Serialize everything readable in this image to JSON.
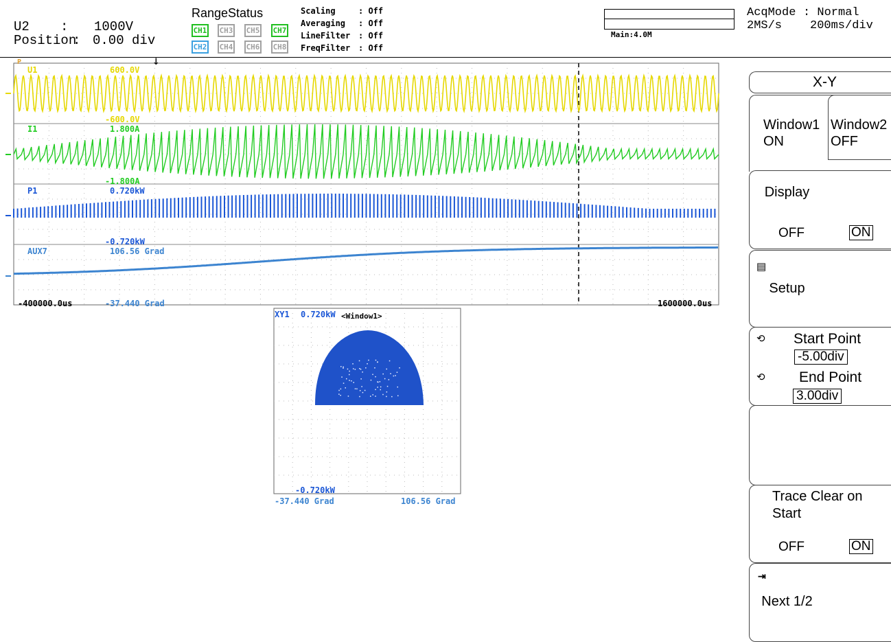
{
  "header": {
    "channel": "U2",
    "range_sep": ":",
    "range_value": "1000V",
    "position_label": "Position",
    "position_value": "0.00 div",
    "range_status_title": "RangeStatus",
    "channels": [
      "CH1",
      "CH2",
      "CH3",
      "CH4",
      "CH5",
      "CH6",
      "CH7",
      "CH8"
    ],
    "settings": [
      {
        "label": "Scaling",
        "value": ": Off"
      },
      {
        "label": "Averaging",
        "value": ": Off"
      },
      {
        "label": "LineFilter",
        "value": ": Off"
      },
      {
        "label": "FreqFilter",
        "value": ": Off"
      }
    ],
    "memory_label": "Main:4.0M",
    "acq_mode_label": "AcqMode",
    "acq_mode_value": ": Normal",
    "sample_rate": "2MS/s",
    "time_div": "200ms/div"
  },
  "waveforms": {
    "traces": [
      {
        "name": "U1",
        "top": "600.0V",
        "bottom": "-600.0V",
        "color": "#e6d800"
      },
      {
        "name": "I1",
        "top": "1.800A",
        "bottom": "-1.800A",
        "color": "#22cc22"
      },
      {
        "name": "P1",
        "top": "0.720kW",
        "bottom": "-0.720kW",
        "color": "#1a56d6"
      },
      {
        "name": "AUX7",
        "top": "106.56 Grad",
        "bottom": "-37.440 Grad",
        "color": "#3c84d0"
      }
    ],
    "time_start": "-400000.0us",
    "time_end": "1600000.0us",
    "ref_marker": "P"
  },
  "xy": {
    "name": "XY1",
    "y_top": "0.720kW",
    "y_bottom": "-0.720kW",
    "window": "<Window1>",
    "x_left": "-37.440 Grad",
    "x_right": "106.56 Grad"
  },
  "menu": {
    "title": "X-Y",
    "window1": {
      "label": "Window1",
      "state": "ON"
    },
    "window2": {
      "label": "Window2",
      "state": "OFF"
    },
    "display": {
      "label": "Display",
      "off": "OFF",
      "on": "ON"
    },
    "setup": {
      "label": "Setup"
    },
    "start_point": {
      "label": "Start Point",
      "value": "-5.00div"
    },
    "end_point": {
      "label": "End Point",
      "value": "3.00div"
    },
    "trace_clear": {
      "label1": "Trace Clear on",
      "label2": "Start",
      "off": "OFF",
      "on": "ON"
    },
    "next": {
      "label": "Next 1/2"
    }
  }
}
